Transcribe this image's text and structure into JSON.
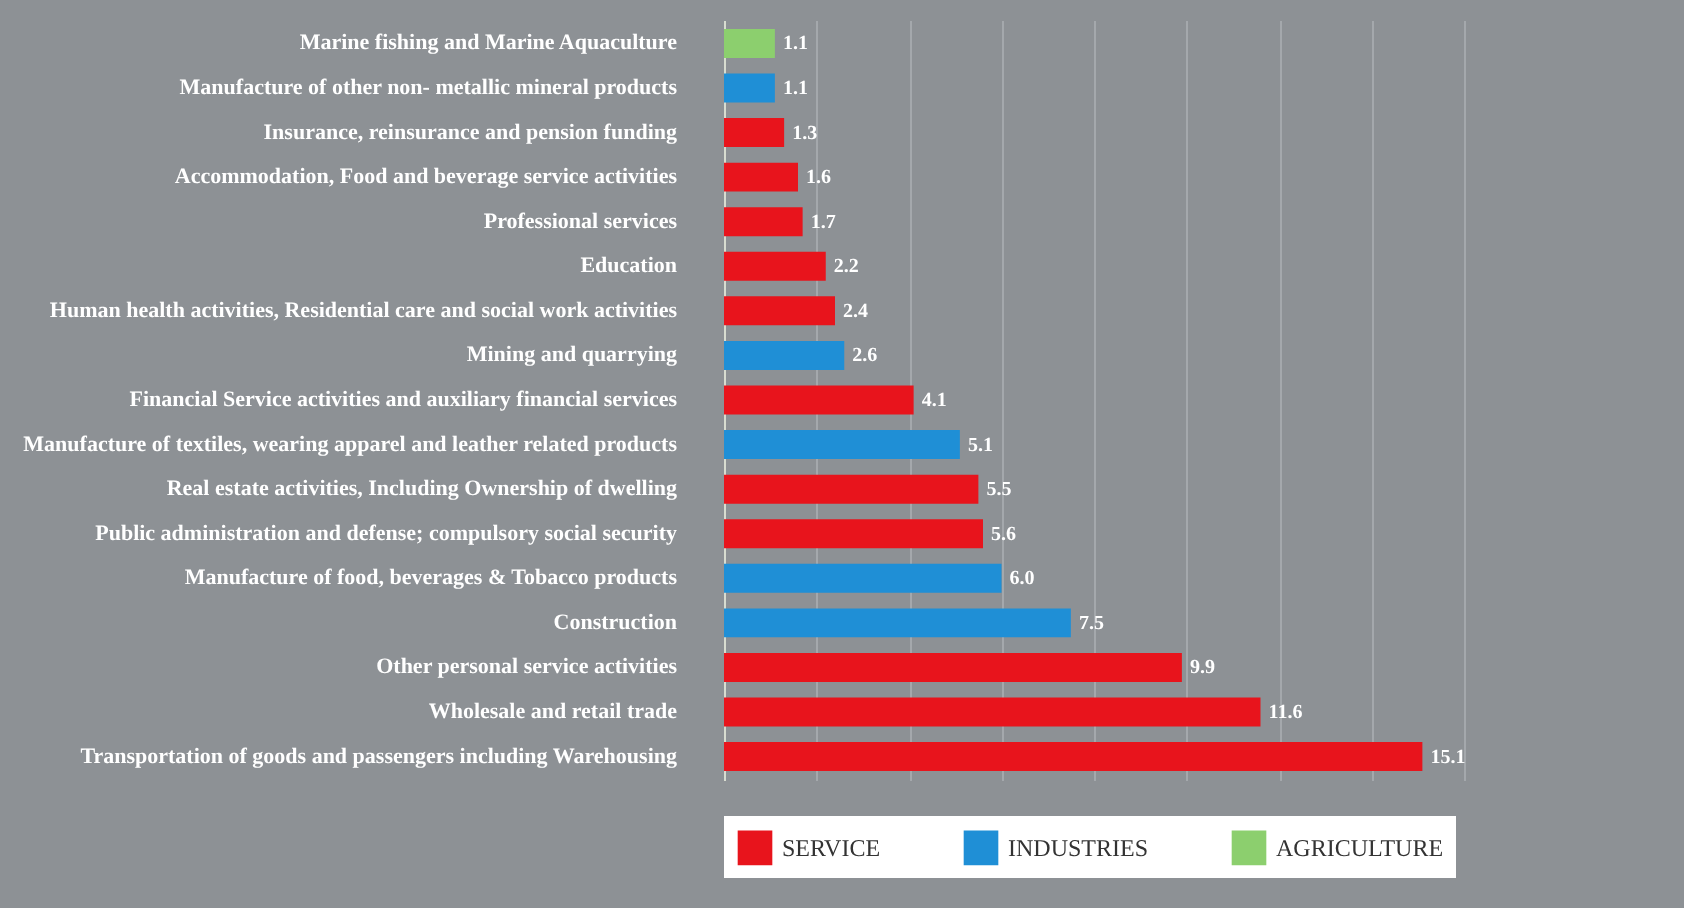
{
  "chart_data": {
    "type": "bar",
    "orientation": "horizontal",
    "categories": [
      "Marine fishing and Marine Aquaculture",
      "Manufacture of other non- metallic mineral products",
      "Insurance, reinsurance and pension funding",
      "Accommodation, Food and beverage service activities",
      "Professional services",
      "Education",
      "Human health activities, Residential care and social work activities",
      "Mining and quarrying",
      "Financial Service activities and auxiliary financial services",
      "Manufacture of textiles, wearing apparel and leather related products",
      "Real estate activities, Including Ownership of dwelling",
      "Public administration and defense; compulsory social security",
      "Manufacture of food, beverages & Tobacco products",
      "Construction",
      "Other personal service activities",
      "Wholesale and retail trade",
      "Transportation of goods and passengers including Warehousing"
    ],
    "series": [
      {
        "name": "SERVICE",
        "color": "#e8141c",
        "values": [
          null,
          null,
          1.3,
          1.6,
          1.7,
          2.2,
          2.4,
          null,
          4.1,
          null,
          5.5,
          5.6,
          null,
          null,
          9.9,
          11.6,
          15.1
        ],
        "value_labels": [
          null,
          null,
          "1.3",
          "1.6",
          "1.7",
          "2.2",
          "2.4",
          null,
          "4.1",
          null,
          "5.5",
          "5.6",
          null,
          null,
          "9.9",
          "11.6",
          "15.1"
        ]
      },
      {
        "name": "INDUSTRIES",
        "color": "#1f8fd6",
        "values": [
          null,
          1.1,
          null,
          null,
          null,
          null,
          null,
          2.6,
          null,
          5.1,
          null,
          null,
          6.0,
          7.5,
          null,
          null,
          null
        ],
        "value_labels": [
          null,
          "1.1",
          null,
          null,
          null,
          null,
          null,
          "2.6",
          null,
          "5.1",
          null,
          null,
          "6.0",
          "7.5",
          null,
          null,
          null
        ]
      },
      {
        "name": "AGRICULTURE",
        "color": "#8ccf6e",
        "values": [
          1.1,
          null,
          null,
          null,
          null,
          null,
          null,
          null,
          null,
          null,
          null,
          null,
          null,
          null,
          null,
          null,
          null
        ],
        "value_labels": [
          "1.1",
          null,
          null,
          null,
          null,
          null,
          null,
          null,
          null,
          null,
          null,
          null,
          null,
          null,
          null,
          null,
          null
        ]
      }
    ],
    "xlim": [
      0,
      16
    ],
    "xticks": [
      {
        "value": 0,
        "label": null
      },
      {
        "value": 2,
        "label": null
      },
      {
        "value": 4,
        "label": null
      },
      {
        "value": 6,
        "label": null
      },
      {
        "value": 8,
        "label": null
      },
      {
        "value": 10,
        "label": null
      },
      {
        "value": 12,
        "label": null
      },
      {
        "value": 14,
        "label": null
      },
      {
        "value": 16,
        "label": null
      }
    ],
    "tick_labels": "y",
    "grid": "x",
    "legend": "bottom"
  }
}
